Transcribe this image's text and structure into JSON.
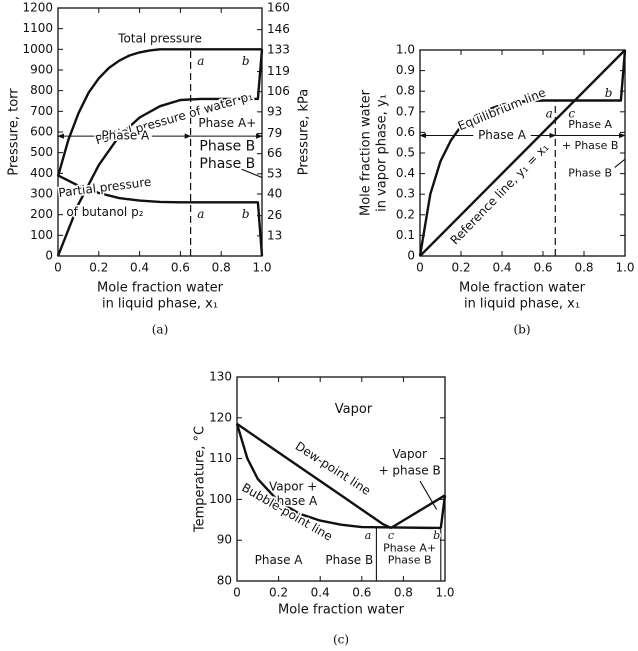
{
  "chart_data": [
    {
      "type": "line",
      "caption": "(a)",
      "xlabel": [
        "Mole fraction water",
        "in liquid phase, x₁"
      ],
      "ylabel": "Pressure, torr",
      "y2label": "Pressure, kPa",
      "xlim": [
        0,
        1
      ],
      "xticks": [
        0,
        0.2,
        0.4,
        0.6,
        0.8,
        {
          "value": 1,
          "label": "1.0"
        }
      ],
      "ylim": [
        0,
        1200
      ],
      "yticks": [
        0,
        100,
        200,
        300,
        400,
        500,
        600,
        700,
        800,
        900,
        1000,
        1100,
        1200
      ],
      "y2lim": [
        0,
        160
      ],
      "y2ticks": [
        13,
        26,
        40,
        53,
        66,
        79,
        93,
        106,
        119,
        133,
        146,
        160
      ],
      "grid": false,
      "series": [
        {
          "color": "#111111",
          "x": [
            0,
            0.05,
            0.1,
            0.15,
            0.2,
            0.25,
            0.3,
            0.35,
            0.4,
            0.45,
            0.5,
            0.6,
            0.7,
            0.8,
            0.9,
            1.0
          ],
          "values": [
            385,
            560,
            690,
            790,
            860,
            910,
            945,
            970,
            985,
            995,
            1000,
            1000,
            1000,
            1000,
            1000,
            1000
          ]
        },
        {
          "color": "#111111",
          "x": [
            0,
            0.1,
            0.2,
            0.3,
            0.4,
            0.5,
            0.6,
            0.7,
            0.8,
            0.9,
            0.98,
            1.0
          ],
          "values": [
            0,
            250,
            440,
            580,
            670,
            725,
            755,
            760,
            760,
            760,
            760,
            1000
          ]
        },
        {
          "color": "#111111",
          "x": [
            0,
            0.1,
            0.2,
            0.3,
            0.4,
            0.5,
            0.6,
            0.98,
            1.0
          ],
          "values": [
            390,
            340,
            305,
            280,
            268,
            262,
            260,
            260,
            0
          ]
        },
        {
          "color": "#111111",
          "dashed": true,
          "x": [
            0.65,
            0.65
          ],
          "values": [
            0,
            1000
          ]
        }
      ],
      "annotations": [
        "Total pressure",
        "a",
        "b",
        "Partial pressure of water p₁",
        "Phase A",
        "Phase A+",
        "Phase B",
        "Phase B",
        "Partial pressure",
        "of butanol p₂",
        "a",
        "b"
      ]
    },
    {
      "type": "line",
      "caption": "(b)",
      "xlabel": [
        "Mole fraction water",
        "in liquid phase, x₁"
      ],
      "ylabel": [
        "Mole fraction water",
        "in vapor phase, y₁"
      ],
      "xlim": [
        0,
        1
      ],
      "xticks": [
        0,
        0.2,
        0.4,
        0.6,
        0.8,
        {
          "value": 1,
          "label": "1.0"
        }
      ],
      "ylim": [
        0,
        1
      ],
      "yticks": [
        0,
        0.1,
        0.2,
        0.3,
        0.4,
        0.5,
        0.6,
        0.7,
        0.8,
        0.9,
        {
          "value": 1,
          "label": "1.0"
        }
      ],
      "grid": false,
      "series": [
        {
          "color": "#111111",
          "x": [
            0,
            0.05,
            0.1,
            0.15,
            0.2,
            0.3,
            0.4,
            0.5,
            0.6,
            0.98,
            1.0
          ],
          "values": [
            0,
            0.3,
            0.46,
            0.56,
            0.63,
            0.7,
            0.735,
            0.75,
            0.755,
            0.755,
            1.0
          ]
        },
        {
          "color": "#111111",
          "x": [
            0,
            1
          ],
          "values": [
            0,
            1
          ]
        },
        {
          "color": "#111111",
          "dashed": true,
          "x": [
            0.66,
            0.66
          ],
          "values": [
            0,
            0.755
          ]
        }
      ],
      "annotations": [
        "Equilibrium line",
        "a",
        "c",
        "b",
        "Phase A",
        "Phase A",
        "+ Phase B",
        "Phase B",
        "Reference line, y₁ = x₁"
      ]
    },
    {
      "type": "line",
      "caption": "(c)",
      "xlabel": [
        "Mole fraction water"
      ],
      "ylabel": "Temperature, °C",
      "xlim": [
        0,
        1
      ],
      "xticks": [
        0,
        0.2,
        0.4,
        0.6,
        0.8,
        {
          "value": 1,
          "label": "1.0"
        }
      ],
      "ylim": [
        80,
        130
      ],
      "yticks": [
        80,
        90,
        100,
        110,
        120,
        130
      ],
      "grid": false,
      "series": [
        {
          "color": "#111111",
          "x": [
            0,
            0.1,
            0.2,
            0.3,
            0.4,
            0.5,
            0.6,
            0.7,
            0.74
          ],
          "values": [
            118.5,
            115,
            111.5,
            108,
            104.5,
            101,
            97.5,
            94,
            93
          ]
        },
        {
          "color": "#111111",
          "x": [
            0,
            0.05,
            0.1,
            0.2,
            0.3,
            0.4,
            0.5,
            0.6,
            0.98
          ],
          "values": [
            118.5,
            110,
            105,
            99.5,
            96.5,
            94.8,
            93.8,
            93.2,
            93
          ]
        },
        {
          "color": "#111111",
          "x": [
            0.74,
            1.0
          ],
          "values": [
            93,
            101
          ]
        },
        {
          "color": "#111111",
          "x": [
            0.98,
            1.0
          ],
          "values": [
            93,
            101
          ]
        },
        {
          "color": "#111111",
          "thin": true,
          "x": [
            0.67,
            0.67
          ],
          "values": [
            93,
            80
          ]
        },
        {
          "color": "#111111",
          "thin": true,
          "x": [
            0.98,
            0.98
          ],
          "values": [
            93,
            80
          ]
        }
      ],
      "annotations": [
        "Vapor",
        "Dew-point line",
        "Vapor",
        "+ phase B",
        "Vapor +",
        "phase A",
        "Bubble-point line",
        "a",
        "c",
        "b",
        "Phase A",
        "Phase B",
        "Phase A+",
        "Phase B"
      ]
    }
  ]
}
